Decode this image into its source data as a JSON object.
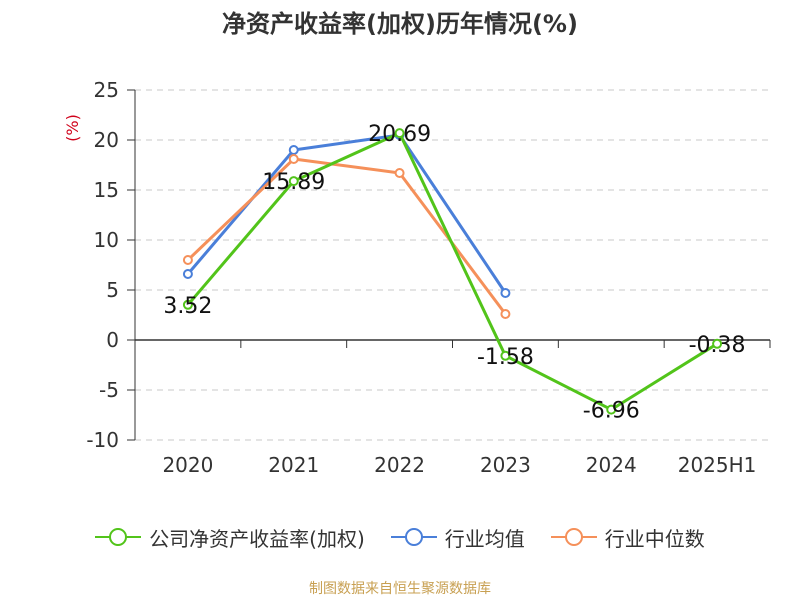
{
  "chart_data": {
    "type": "line",
    "title": "净资产收益率(加权)历年情况(%)",
    "ylabel": "(%)",
    "categories": [
      "2020",
      "2021",
      "2022",
      "2023",
      "2024",
      "2025H1"
    ],
    "ylim": [
      -10,
      25
    ],
    "yticks": [
      25,
      20,
      15,
      10,
      5,
      0,
      -5,
      -10
    ],
    "grid": true,
    "legend_position": "bottom",
    "series": [
      {
        "name": "公司净资产收益率(加权)",
        "color": "#52c41a",
        "values": [
          3.52,
          15.89,
          20.69,
          -1.58,
          -6.96,
          -0.38
        ],
        "labels": [
          "3.52",
          "15.89",
          "20.69",
          "-1.58",
          "-6.96",
          "-0.38"
        ]
      },
      {
        "name": "行业均值",
        "color": "#4a7fd9",
        "values": [
          6.6,
          19.0,
          20.5,
          4.7,
          null,
          null
        ]
      },
      {
        "name": "行业中位数",
        "color": "#f5905a",
        "values": [
          8.0,
          18.1,
          16.7,
          2.6,
          null,
          null
        ]
      }
    ]
  },
  "legend": {
    "company": "公司净资产收益率(加权)",
    "avg": "行业均值",
    "median": "行业中位数"
  },
  "source": "制图数据来自恒生聚源数据库"
}
